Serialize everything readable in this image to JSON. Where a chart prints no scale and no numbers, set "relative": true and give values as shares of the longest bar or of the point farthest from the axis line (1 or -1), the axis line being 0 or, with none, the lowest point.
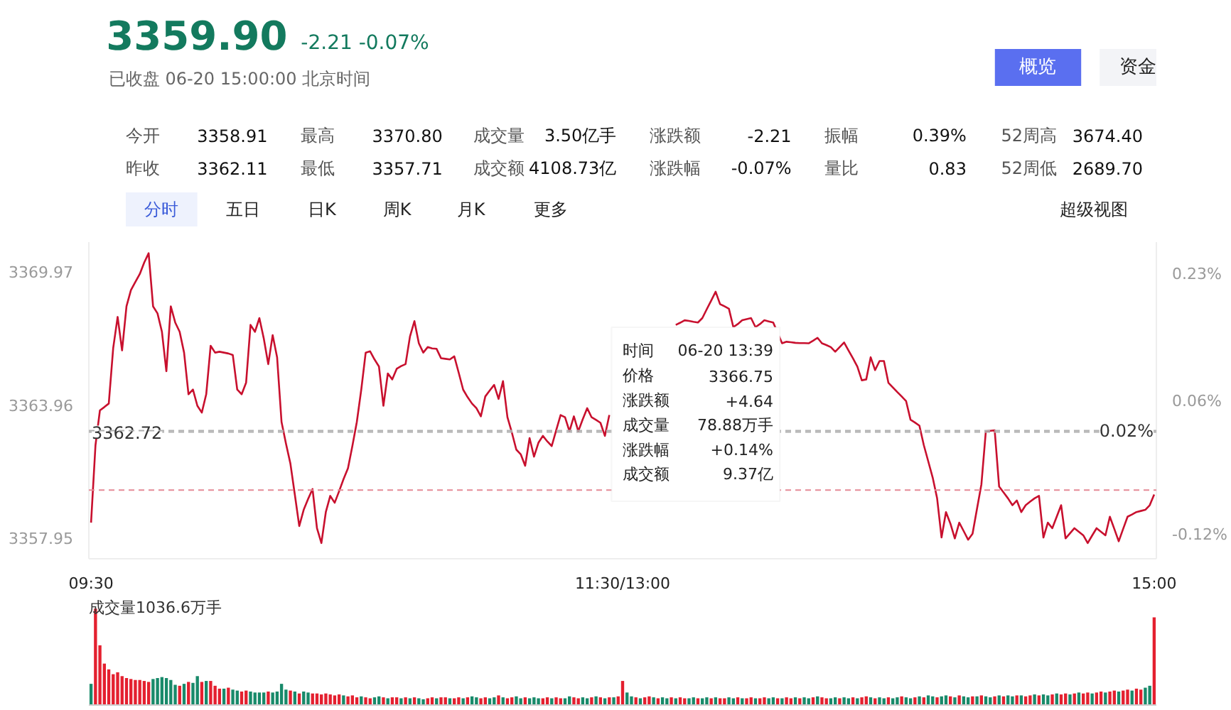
{
  "chart_data": [
    {
      "type": "other",
      "title": "3359.90",
      "subtitle": "-2.21  -0.07%",
      "annotations": [
        "已收盘 06-20 15:00:00 北京时间",
        "概览",
        "资金",
        "今开",
        "3358.91",
        "最高",
        "3370.80",
        "成交量",
        "3.50亿手",
        "涨跌额",
        "-2.21",
        "振幅",
        "0.39%",
        "52周高",
        "3674.40",
        "昨收",
        "3362.11",
        "最低",
        "3357.71",
        "成交额",
        "4108.73亿",
        "涨跌幅",
        "-0.07%",
        "量比",
        "0.83",
        "52周低",
        "2689.70",
        "分时",
        "五日",
        "日K",
        "周K",
        "月K",
        "更多",
        "超级视图"
      ]
    },
    {
      "type": "line",
      "categories": [
        "09:30",
        null,
        null,
        null,
        null,
        null,
        null,
        null,
        null,
        null,
        null,
        null,
        null,
        null,
        null,
        null,
        null,
        null,
        null,
        null,
        null,
        null,
        null,
        null,
        null,
        null,
        null,
        null,
        null,
        null,
        null,
        null,
        null,
        null,
        null,
        null,
        null,
        null,
        null,
        null,
        null,
        null,
        null,
        null,
        null,
        null,
        null,
        null,
        null,
        null,
        null,
        null,
        null,
        null,
        null,
        null,
        null,
        null,
        null,
        null,
        null,
        null,
        null,
        null,
        null,
        null,
        null,
        null,
        null,
        null,
        null,
        null,
        null,
        null,
        null,
        null,
        null,
        null,
        null,
        null,
        null,
        null,
        null,
        null,
        null,
        null,
        null,
        null,
        null,
        null,
        null,
        null,
        null,
        null,
        null,
        null,
        null,
        null,
        null,
        null,
        null,
        null,
        null,
        null,
        null,
        null,
        null,
        null,
        null,
        null,
        null,
        null,
        null,
        null,
        null,
        null,
        null,
        null,
        null,
        null,
        "11:30/13:00",
        null,
        null,
        null,
        null,
        null,
        null,
        null,
        null,
        null,
        null,
        null,
        null,
        null,
        null,
        null,
        null,
        null,
        null,
        null,
        null,
        null,
        null,
        null,
        null,
        null,
        null,
        null,
        null,
        null,
        null,
        null,
        null,
        null,
        null,
        null,
        null,
        null,
        null,
        null,
        null,
        null,
        null,
        null,
        null,
        null,
        null,
        null,
        null,
        null,
        null,
        null,
        null,
        null,
        null,
        null,
        null,
        null,
        null,
        null,
        null,
        null,
        null,
        null,
        null,
        null,
        null,
        null,
        null,
        null,
        null,
        null,
        null,
        null,
        null,
        null,
        null,
        null,
        null,
        null,
        null,
        null,
        null,
        null,
        null,
        null,
        null,
        null,
        null,
        null,
        null,
        null,
        null,
        null,
        null,
        null,
        null,
        null,
        null,
        null,
        null,
        null,
        null,
        null,
        null,
        null,
        null,
        null,
        null,
        null,
        null,
        null,
        null,
        null,
        null,
        null,
        null,
        null,
        null,
        null,
        "15:00"
      ],
      "ylim": [
        3357.0,
        3371.3
      ],
      "yticks": [
        3369.97,
        3363.96,
        3357.95
      ],
      "y2lim": [
        -0.152,
        0.273
      ],
      "y2ticks": [
        {
          "value": 0.23,
          "label": "0.23%"
        },
        {
          "value": 0.06,
          "label": "0.06%"
        },
        {
          "value": -0.12,
          "label": "-0.12%"
        }
      ],
      "series": [
        {
          "color": "#c8102e",
          "values": [
            3358.63,
            3362.13,
            3363.7,
            3363.85,
            3364.01,
            3366.52,
            3367.92,
            3366.41,
            3368.4,
            3369.13,
            3369.5,
            3369.86,
            3370.38,
            3370.8,
            3368.4,
            3368.08,
            3367.25,
            3365.47,
            3368.4,
            3367.67,
            3367.25,
            3366.31,
            3364.43,
            3364.64,
            3363.91,
            3363.6,
            3364.43,
            3366.62,
            3366.31,
            3366.35,
            3366.31,
            3366.27,
            3366.2,
            3364.64,
            3364.43,
            3364.95,
            3367.56,
            3367.25,
            3367.87,
            3366.94,
            3365.79,
            3367.1,
            3366.1,
            3363.18,
            3362.2,
            3361.3,
            3359.9,
            3358.48,
            3359.21,
            3359.7,
            3360.15,
            3358.38,
            3357.71,
            3359.11,
            3359.84,
            3359.53,
            3360.05,
            3360.6,
            3361.09,
            3362.1,
            3363.18,
            3364.64,
            3366.31,
            3366.37,
            3366.0,
            3365.68,
            3363.91,
            3365.37,
            3365.1,
            3365.58,
            3365.7,
            3365.79,
            3367.04,
            3367.73,
            3366.73,
            3366.31,
            3366.56,
            3366.5,
            3366.48,
            3366.06,
            3366.03,
            3366.0,
            3366.14,
            3365.4,
            3364.64,
            3364.3,
            3364.01,
            3363.8,
            3363.43,
            3364.33,
            3364.6,
            3364.85,
            3364.22,
            3365.02,
            3363.39,
            3362.7,
            3361.93,
            3361.72,
            3361.2,
            3362.45,
            3361.61,
            3362.24,
            3362.55,
            3362.3,
            3362.09,
            3362.8,
            3363.49,
            3363.39,
            3362.76,
            3363.43,
            3362.76,
            3363.3,
            3363.8,
            3363.39,
            3363.27,
            3363.14,
            3362.55,
            3363.49,
            null,
            null,
            null,
            null,
            null,
            null,
            null,
            null,
            null,
            null,
            null,
            null,
            null,
            null,
            3367.56,
            3367.66,
            3367.77,
            3367.74,
            3367.7,
            3367.67,
            3367.87,
            3368.27,
            3368.66,
            3369.06,
            3368.5,
            3368.4,
            3368.29,
            3367.46,
            3367.6,
            3367.77,
            3367.82,
            3367.87,
            3367.46,
            3367.6,
            3367.77,
            3367.72,
            3367.67,
            3367.2,
            3366.73,
            3366.8,
            3366.78,
            3366.75,
            3366.74,
            3366.74,
            3366.73,
            3366.85,
            3366.98,
            3366.73,
            3366.65,
            3366.56,
            3366.35,
            3366.56,
            3366.77,
            3366.41,
            3366.05,
            3365.68,
            3365.06,
            3365.1,
            3366.1,
            3365.52,
            3365.93,
            3365.93,
            3364.95,
            3364.74,
            3364.53,
            3364.33,
            3364.12,
            3363.28,
            3363.15,
            3363.01,
            3362.13,
            3361.4,
            3360.67,
            3359.73,
            3357.96,
            3359.11,
            3358.59,
            3357.92,
            3358.63,
            3358.25,
            3357.86,
            3358.13,
            3359.25,
            3360.36,
            3362.76,
            3362.78,
            3362.8,
            3360.26,
            3360.0,
            3359.73,
            3359.42,
            3359.63,
            3359.11,
            3359.42,
            3359.58,
            3359.73,
            3359.84,
            3357.96,
            3358.63,
            3358.38,
            3358.9,
            3359.42,
            3357.92,
            3358.15,
            3358.38,
            3358.22,
            3358.06,
            3357.71,
            3358.05,
            3358.38,
            3358.22,
            3358.06,
            3358.9,
            3358.35,
            3357.79,
            3358.35,
            3358.9,
            3359.0,
            3359.11,
            3359.16,
            3359.21,
            3359.42,
            3359.9
          ]
        }
      ],
      "ref_lines": [
        {
          "axis": "y",
          "value": 3362.72,
          "label": "3362.72",
          "color": "#b0b0b0",
          "line_style": "dashed"
        },
        {
          "axis": "y2",
          "value": 0.02,
          "label": "0.02%",
          "color": "#b0b0b0",
          "line_style": "dashed"
        },
        {
          "axis": "y",
          "value": 3360.1,
          "color": "#e58a96",
          "line_style": "dashed"
        }
      ],
      "annotations": [
        "时间",
        "06-20 13:39",
        "价格",
        "3366.75",
        "涨跌额",
        "+4.64",
        "成交量",
        "78.88万手",
        "涨跌幅",
        "+0.14%",
        "成交额",
        "9.37亿"
      ]
    },
    {
      "type": "bar",
      "relative": true,
      "title": "成交量1036.6万手",
      "categories": [
        null,
        null,
        null,
        null,
        null,
        null,
        null,
        null,
        null,
        null,
        null,
        null,
        null,
        null,
        null,
        null,
        null,
        null,
        null,
        null,
        null,
        null,
        null,
        null,
        null,
        null,
        null,
        null,
        null,
        null,
        null,
        null,
        null,
        null,
        null,
        null,
        null,
        null,
        null,
        null,
        null,
        null,
        null,
        null,
        null,
        null,
        null,
        null,
        null,
        null,
        null,
        null,
        null,
        null,
        null,
        null,
        null,
        null,
        null,
        null,
        null,
        null,
        null,
        null,
        null,
        null,
        null,
        null,
        null,
        null,
        null,
        null,
        null,
        null,
        null,
        null,
        null,
        null,
        null,
        null,
        null,
        null,
        null,
        null,
        null,
        null,
        null,
        null,
        null,
        null,
        null,
        null,
        null,
        null,
        null,
        null,
        null,
        null,
        null,
        null,
        null,
        null,
        null,
        null,
        null,
        null,
        null,
        null,
        null,
        null,
        null,
        null,
        null,
        null,
        null,
        null,
        null,
        null,
        null,
        null,
        null,
        null,
        null,
        null,
        null,
        null,
        null,
        null,
        null,
        null,
        null,
        null,
        null,
        null,
        null,
        null,
        null,
        null,
        null,
        null,
        null,
        null,
        null,
        null,
        null,
        null,
        null,
        null,
        null,
        null,
        null,
        null,
        null,
        null,
        null,
        null,
        null,
        null,
        null,
        null,
        null,
        null,
        null,
        null,
        null,
        null,
        null,
        null,
        null,
        null,
        null,
        null,
        null,
        null,
        null,
        null,
        null,
        null,
        null,
        null,
        null,
        null,
        null,
        null,
        null,
        null,
        null,
        null,
        null,
        null,
        null,
        null,
        null,
        null,
        null,
        null,
        null,
        null,
        null,
        null,
        null,
        null,
        null,
        null,
        null,
        null,
        null,
        null,
        null,
        null,
        null,
        null,
        null,
        null,
        null,
        null,
        null,
        null,
        null,
        null,
        null,
        null,
        null,
        null,
        null,
        null,
        null,
        null,
        null,
        null,
        null,
        null,
        null,
        null,
        null,
        null,
        null,
        null,
        null,
        null,
        null
      ],
      "values": [
        0.22,
        1,
        0.62,
        0.43,
        0.37,
        0.32,
        0.34,
        0.3,
        0.28,
        0.27,
        0.26,
        0.26,
        0.25,
        0.24,
        0.27,
        0.28,
        0.29,
        0.28,
        0.26,
        0.21,
        0.2,
        0.22,
        0.24,
        0.23,
        0.3,
        0.24,
        0.25,
        0.25,
        0.2,
        0.17,
        0.17,
        0.18,
        0.16,
        0.15,
        0.14,
        0.15,
        0.14,
        0.13,
        0.13,
        0.13,
        0.14,
        0.13,
        0.14,
        0.22,
        0.16,
        0.15,
        0.14,
        0.12,
        0.14,
        0.13,
        0.12,
        0.12,
        0.11,
        0.12,
        0.11,
        0.1,
        0.11,
        0.1,
        0.09,
        0.1,
        0.08,
        0.09,
        0.08,
        0.07,
        0.08,
        0.09,
        0.08,
        0.07,
        0.08,
        0.08,
        0.07,
        0.08,
        0.07,
        0.08,
        0.07,
        0.06,
        0.07,
        0.08,
        0.07,
        0.08,
        0.08,
        0.07,
        0.07,
        0.08,
        0.07,
        0.08,
        0.09,
        0.08,
        0.07,
        0.08,
        0.07,
        0.08,
        0.1,
        0.08,
        0.07,
        0.08,
        0.09,
        0.07,
        0.08,
        0.07,
        0.08,
        0.07,
        0.07,
        0.08,
        0.07,
        0.08,
        0.07,
        0.07,
        0.09,
        0.08,
        0.07,
        0.08,
        0.07,
        0.08,
        0.09,
        0.08,
        0.07,
        0.08,
        0.08,
        0.09,
        0.25,
        0.13,
        0.09,
        0.08,
        0.07,
        0.08,
        0.09,
        0.08,
        0.07,
        0.08,
        0.07,
        0.08,
        0.07,
        0.08,
        0.07,
        0.07,
        0.08,
        0.07,
        0.07,
        0.08,
        0.07,
        0.08,
        0.07,
        0.07,
        0.08,
        0.07,
        0.08,
        0.07,
        0.07,
        0.08,
        0.07,
        0.07,
        0.08,
        0.07,
        0.08,
        0.07,
        0.07,
        0.08,
        0.07,
        0.08,
        0.07,
        0.08,
        0.07,
        0.08,
        0.09,
        0.08,
        0.07,
        0.07,
        0.08,
        0.07,
        0.08,
        0.07,
        0.08,
        0.07,
        0.08,
        0.09,
        0.08,
        0.07,
        0.08,
        0.07,
        0.08,
        0.07,
        0.08,
        0.09,
        0.08,
        0.07,
        0.08,
        0.09,
        0.08,
        0.1,
        0.09,
        0.08,
        0.09,
        0.1,
        0.09,
        0.08,
        0.1,
        0.09,
        0.08,
        0.09,
        0.09,
        0.1,
        0.09,
        0.08,
        0.09,
        0.1,
        0.09,
        0.1,
        0.09,
        0.1,
        0.1,
        0.09,
        0.1,
        0.11,
        0.1,
        0.11,
        0.1,
        0.11,
        0.12,
        0.11,
        0.12,
        0.11,
        0.12,
        0.13,
        0.12,
        0.13,
        0.12,
        0.13,
        0.14,
        0.13,
        0.14,
        0.15,
        0.14,
        0.15,
        0.16,
        0.15,
        0.17,
        0.16,
        0.18,
        0.2,
        0.91
      ],
      "colors": [
        "#188a6a",
        "#e4202f",
        "#e4202f",
        "#e4202f",
        "#e4202f",
        "#e4202f",
        "#e4202f",
        "#e4202f",
        "#e4202f",
        "#e4202f",
        "#e4202f",
        "#e4202f",
        "#e4202f",
        "#e4202f",
        "#188a6a",
        "#188a6a",
        "#188a6a",
        "#188a6a",
        "#188a6a",
        "#188a6a",
        "#e4202f",
        "#188a6a",
        "#e4202f",
        "#188a6a",
        "#188a6a",
        "#e4202f",
        "#188a6a",
        "#e4202f",
        "#e4202f",
        "#e4202f",
        "#188a6a",
        "#e4202f",
        "#188a6a",
        "#188a6a",
        "#e4202f",
        "#e4202f",
        "#188a6a",
        "#188a6a",
        "#188a6a",
        "#188a6a",
        "#e4202f",
        "#188a6a",
        "#188a6a",
        "#188a6a",
        "#188a6a",
        "#e4202f",
        "#188a6a",
        "#e4202f",
        "#188a6a",
        "#188a6a",
        "#e4202f",
        "#e4202f",
        "#e4202f",
        "#e4202f",
        "#e4202f",
        "#e4202f",
        "#e4202f",
        "#188a6a",
        "#e4202f",
        "#e4202f",
        "#e4202f",
        "#188a6a",
        "#e4202f",
        "#e4202f",
        "#188a6a",
        "#188a6a",
        "#e4202f",
        "#188a6a",
        "#e4202f",
        "#e4202f",
        "#188a6a",
        "#e4202f",
        "#188a6a",
        "#e4202f",
        "#188a6a",
        "#188a6a",
        "#e4202f",
        "#e4202f",
        "#188a6a",
        "#e4202f",
        "#e4202f",
        "#188a6a",
        "#e4202f",
        "#e4202f",
        "#188a6a",
        "#e4202f",
        "#188a6a",
        "#188a6a",
        "#e4202f",
        "#e4202f",
        "#188a6a",
        "#188a6a",
        "#e4202f",
        "#188a6a",
        "#e4202f",
        "#e4202f",
        "#188a6a",
        "#188a6a",
        "#e4202f",
        "#188a6a",
        "#188a6a",
        "#188a6a",
        "#e4202f",
        "#e4202f",
        "#188a6a",
        "#e4202f",
        "#e4202f",
        "#188a6a",
        "#188a6a",
        "#e4202f",
        "#e4202f",
        "#188a6a",
        "#188a6a",
        "#e4202f",
        "#188a6a",
        "#e4202f",
        "#188a6a",
        "#e4202f",
        "#188a6a",
        "#e4202f",
        "#e4202f",
        "#188a6a",
        "#188a6a",
        "#e4202f",
        "#188a6a",
        "#e4202f",
        "#e4202f",
        "#188a6a",
        "#e4202f",
        "#188a6a",
        "#188a6a",
        "#e4202f",
        "#188a6a",
        "#e4202f",
        "#e4202f",
        "#188a6a",
        "#188a6a",
        "#e4202f",
        "#188a6a",
        "#188a6a",
        "#e4202f",
        "#188a6a",
        "#e4202f",
        "#e4202f",
        "#188a6a",
        "#188a6a",
        "#e4202f",
        "#188a6a",
        "#e4202f",
        "#e4202f",
        "#188a6a",
        "#e4202f",
        "#e4202f",
        "#188a6a",
        "#188a6a",
        "#e4202f",
        "#188a6a",
        "#e4202f",
        "#e4202f",
        "#188a6a",
        "#e4202f",
        "#188a6a",
        "#188a6a",
        "#e4202f",
        "#188a6a",
        "#e4202f",
        "#e4202f",
        "#188a6a",
        "#188a6a",
        "#e4202f",
        "#188a6a",
        "#188a6a",
        "#e4202f",
        "#188a6a",
        "#e4202f",
        "#e4202f",
        "#188a6a",
        "#e4202f",
        "#188a6a",
        "#188a6a",
        "#e4202f",
        "#188a6a",
        "#188a6a",
        "#e4202f",
        "#188a6a",
        "#188a6a",
        "#e4202f",
        "#188a6a",
        "#e4202f",
        "#188a6a",
        "#188a6a",
        "#e4202f",
        "#188a6a",
        "#188a6a",
        "#e4202f",
        "#188a6a",
        "#e4202f",
        "#188a6a",
        "#188a6a",
        "#e4202f",
        "#188a6a",
        "#e4202f",
        "#188a6a",
        "#188a6a",
        "#e4202f",
        "#188a6a",
        "#e4202f",
        "#188a6a",
        "#188a6a",
        "#e4202f",
        "#188a6a",
        "#e4202f",
        "#e4202f",
        "#188a6a",
        "#e4202f",
        "#188a6a",
        "#188a6a",
        "#e4202f",
        "#188a6a",
        "#e4202f",
        "#e4202f",
        "#188a6a",
        "#e4202f",
        "#188a6a",
        "#e4202f",
        "#e4202f",
        "#188a6a",
        "#e4202f",
        "#e4202f",
        "#188a6a",
        "#e4202f",
        "#e4202f",
        "#188a6a",
        "#e4202f",
        "#e4202f",
        "#188a6a",
        "#e4202f",
        "#e4202f",
        "#188a6a",
        "#188a6a",
        "#e4202f"
      ]
    }
  ]
}
